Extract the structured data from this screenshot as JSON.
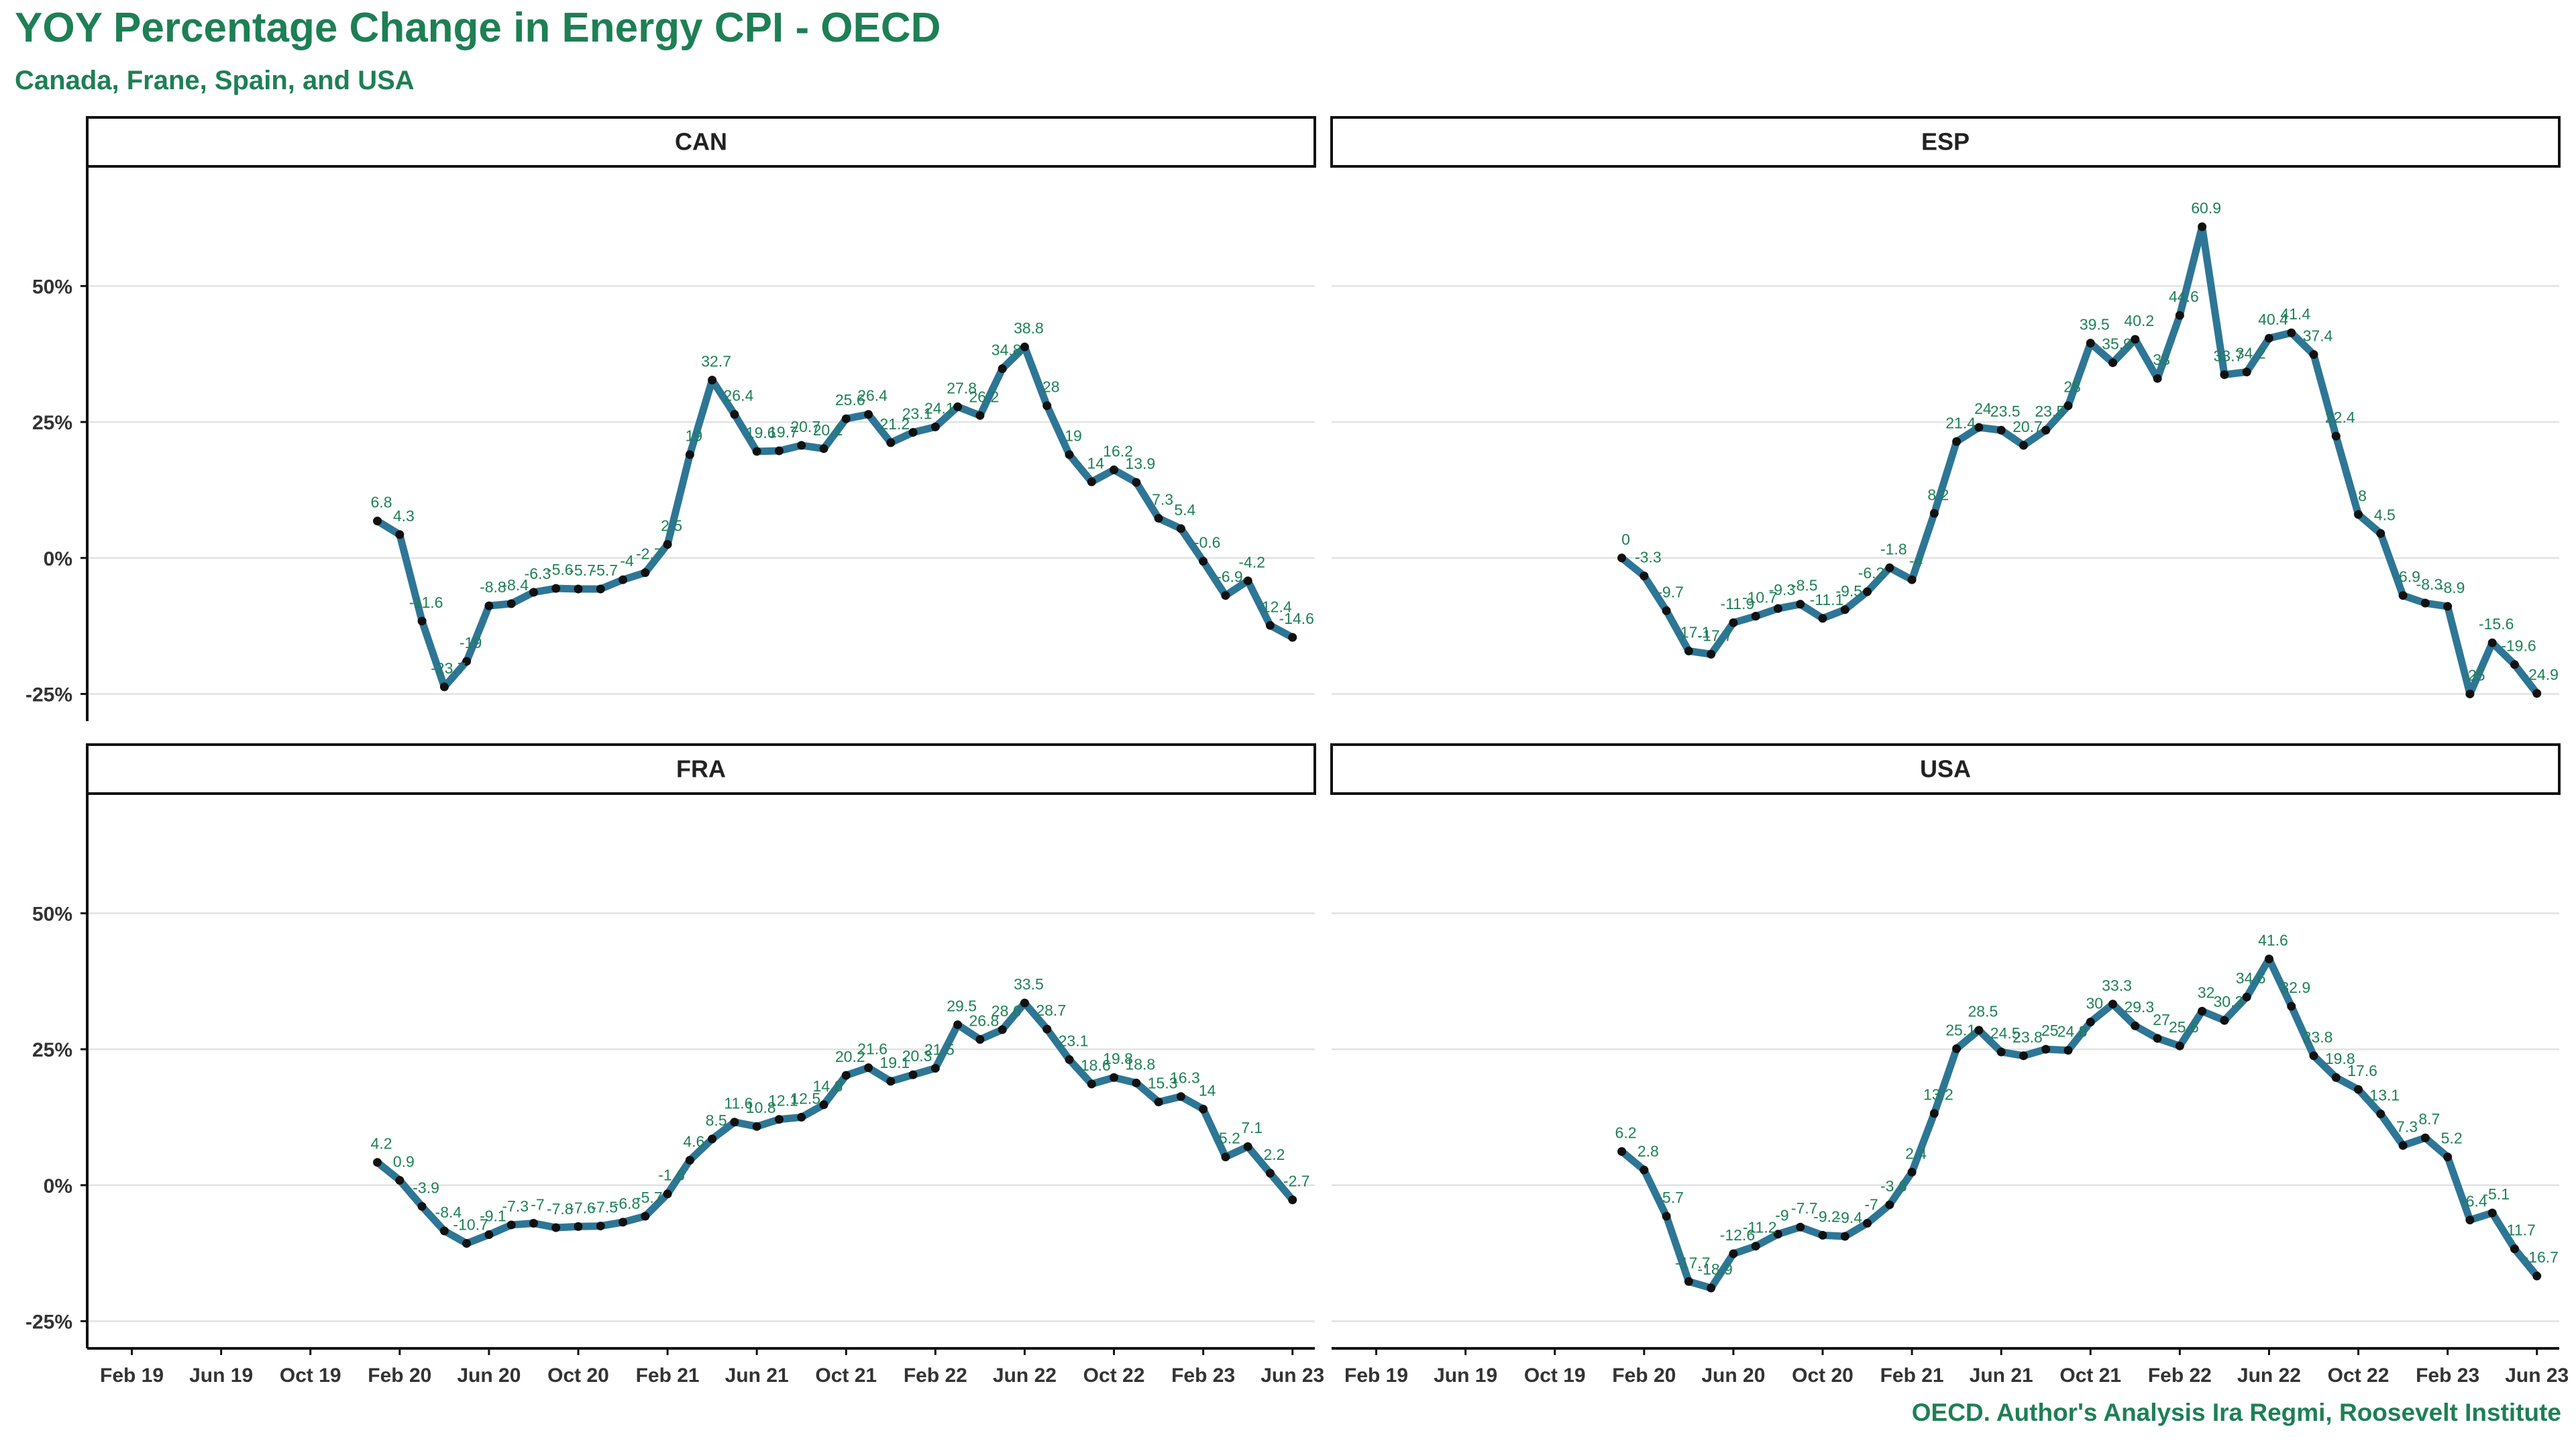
{
  "title": "YOY Percentage Change in Energy CPI - OECD",
  "subtitle": "Canada, Frane, Spain, and USA",
  "caption": "OECD. Author's Analysis Ira Regmi, Roosevelt Institute",
  "colors": {
    "accent": "#1e7f55",
    "line": "#2e7696",
    "point": "#111111"
  },
  "chart_data": {
    "type": "line",
    "facets": [
      "CAN",
      "ESP",
      "FRA",
      "USA"
    ],
    "x_ticks": [
      "Feb 19",
      "Jun 19",
      "Oct 19",
      "Feb 20",
      "Jun 20",
      "Oct 20",
      "Feb 21",
      "Jun 21",
      "Oct 21",
      "Feb 22",
      "Jun 22",
      "Oct 22",
      "Feb 23",
      "Jun 23"
    ],
    "y_ticks": [
      "50%",
      "25%",
      "0%",
      "-25%"
    ],
    "y_tick_values": [
      50,
      25,
      0,
      -25
    ],
    "ylim": [
      -30,
      72
    ],
    "x_range": [
      "2018-12",
      "2023-07"
    ],
    "grid": true,
    "start_month": "2020-01",
    "series": [
      {
        "name": "CAN",
        "values": [
          6.8,
          4.3,
          -11.6,
          -23.7,
          -19,
          -8.8,
          -8.4,
          -6.3,
          -5.6,
          -5.7,
          -5.7,
          -4,
          -2.7,
          2.5,
          19,
          32.7,
          26.4,
          19.6,
          19.7,
          20.7,
          20.1,
          25.6,
          26.4,
          21.2,
          23.1,
          24.1,
          27.8,
          26.2,
          34.8,
          38.8,
          28,
          19,
          14,
          16.2,
          13.9,
          7.3,
          5.4,
          -0.6,
          -6.9,
          -4.2,
          -12.4,
          -14.6
        ]
      },
      {
        "name": "ESP",
        "values": [
          0,
          -3.3,
          -9.7,
          -17.1,
          -17.7,
          -11.9,
          -10.7,
          -9.3,
          -8.5,
          -11.1,
          -9.5,
          -6.2,
          -1.8,
          -4,
          8.2,
          21.4,
          24,
          23.5,
          20.7,
          23.5,
          28,
          39.5,
          35.9,
          40.2,
          33,
          44.6,
          60.9,
          33.7,
          34.2,
          40.4,
          41.4,
          37.4,
          22.4,
          8,
          4.5,
          -6.9,
          -8.3,
          -8.9,
          -25,
          -15.6,
          -19.6,
          -24.9
        ]
      },
      {
        "name": "FRA",
        "values": [
          4.2,
          0.9,
          -3.9,
          -8.4,
          -10.7,
          -9.1,
          -7.3,
          -7,
          -7.8,
          -7.6,
          -7.5,
          -6.8,
          -5.7,
          -1.6,
          4.6,
          8.5,
          11.6,
          10.8,
          12.1,
          12.5,
          14.8,
          20.2,
          21.6,
          19.1,
          20.3,
          21.5,
          29.5,
          26.8,
          28.6,
          33.5,
          28.7,
          23.1,
          18.6,
          19.8,
          18.8,
          15.3,
          16.3,
          14,
          5.2,
          7.1,
          2.2,
          -2.7
        ]
      },
      {
        "name": "USA",
        "values": [
          6.2,
          2.8,
          -5.7,
          -17.7,
          -18.9,
          -12.6,
          -11.2,
          -9,
          -7.7,
          -9.2,
          -9.4,
          -7,
          -3.6,
          2.4,
          13.2,
          25.1,
          28.5,
          24.5,
          23.8,
          25,
          24.8,
          30,
          33.3,
          29.3,
          27,
          25.6,
          32,
          30.3,
          34.6,
          41.6,
          32.9,
          23.8,
          19.8,
          17.6,
          13.1,
          7.3,
          8.7,
          5.2,
          -6.4,
          -5.1,
          -11.7,
          -16.7
        ]
      }
    ]
  }
}
